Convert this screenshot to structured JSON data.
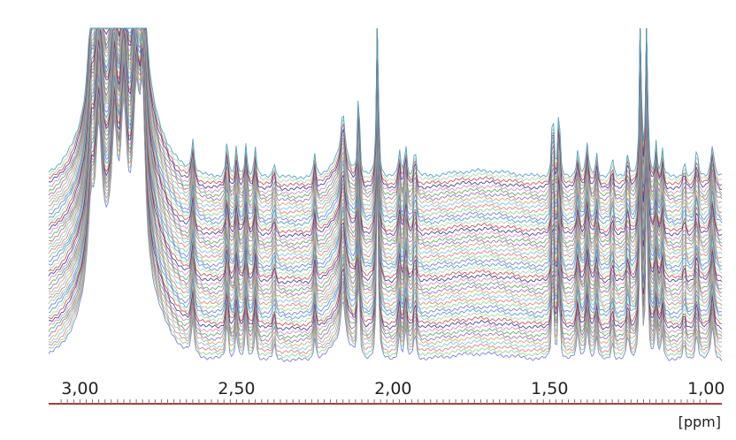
{
  "chart_data": {
    "type": "line",
    "title": "",
    "xlabel": "[ppm]",
    "ylabel": "",
    "x_reversed": true,
    "xlim": [
      3.1,
      0.95
    ],
    "ticks": [
      {
        "value": 3.0,
        "label": "3,00"
      },
      {
        "value": 2.5,
        "label": "2,50"
      },
      {
        "value": 2.0,
        "label": "2,00"
      },
      {
        "value": 1.5,
        "label": "1,50"
      },
      {
        "value": 1.0,
        "label": "1,00"
      }
    ],
    "minor_tick_step": 0.02,
    "stacked_spectra_count": 48,
    "series_colors": [
      "#6b6bd6",
      "#7fcf7f",
      "#e07070",
      "#70c0d8",
      "#c0a060",
      "#9060b0",
      "#50a050",
      "#d080c0",
      "#2a2a80",
      "#c04040",
      "#a0d0a0",
      "#4090c0"
    ],
    "axis_color": "#a04040",
    "peaks": [
      {
        "ppm": 2.965,
        "height": 0.22,
        "width": 0.012
      },
      {
        "ppm": 2.94,
        "height": 0.4,
        "width": 0.012
      },
      {
        "ppm": 2.89,
        "height": 0.3,
        "width": 0.01
      },
      {
        "ppm": 2.86,
        "height": 0.36,
        "width": 0.01
      },
      {
        "ppm": 2.82,
        "height": 0.42,
        "width": 0.012
      },
      {
        "ppm": 2.8,
        "height": 0.46,
        "width": 0.01
      },
      {
        "ppm": 2.64,
        "height": 0.1,
        "width": 0.005
      },
      {
        "ppm": 2.53,
        "height": 0.12,
        "width": 0.004
      },
      {
        "ppm": 2.5,
        "height": 0.09,
        "width": 0.004
      },
      {
        "ppm": 2.47,
        "height": 0.1,
        "width": 0.004
      },
      {
        "ppm": 2.44,
        "height": 0.09,
        "width": 0.004
      },
      {
        "ppm": 2.38,
        "height": 0.05,
        "width": 0.004
      },
      {
        "ppm": 2.25,
        "height": 0.07,
        "width": 0.004
      },
      {
        "ppm": 2.16,
        "height": 0.14,
        "width": 0.008
      },
      {
        "ppm": 2.11,
        "height": 0.32,
        "width": 0.003
      },
      {
        "ppm": 2.05,
        "height": 0.62,
        "width": 0.003
      },
      {
        "ppm": 1.98,
        "height": 0.08,
        "width": 0.004
      },
      {
        "ppm": 1.96,
        "height": 0.1,
        "width": 0.004
      },
      {
        "ppm": 1.93,
        "height": 0.09,
        "width": 0.004
      },
      {
        "ppm": 1.49,
        "height": 0.26,
        "width": 0.003
      },
      {
        "ppm": 1.47,
        "height": 0.26,
        "width": 0.003
      },
      {
        "ppm": 1.41,
        "height": 0.08,
        "width": 0.005
      },
      {
        "ppm": 1.38,
        "height": 0.1,
        "width": 0.005
      },
      {
        "ppm": 1.35,
        "height": 0.07,
        "width": 0.004
      },
      {
        "ppm": 1.3,
        "height": 0.06,
        "width": 0.004
      },
      {
        "ppm": 1.25,
        "height": 0.08,
        "width": 0.004
      },
      {
        "ppm": 1.21,
        "height": 0.6,
        "width": 0.003
      },
      {
        "ppm": 1.19,
        "height": 0.6,
        "width": 0.003
      },
      {
        "ppm": 1.16,
        "height": 0.1,
        "width": 0.004
      },
      {
        "ppm": 1.14,
        "height": 0.08,
        "width": 0.004
      },
      {
        "ppm": 1.07,
        "height": 0.05,
        "width": 0.004
      },
      {
        "ppm": 1.03,
        "height": 0.08,
        "width": 0.005
      },
      {
        "ppm": 0.98,
        "height": 0.1,
        "width": 0.006
      }
    ],
    "broad_humps": [
      {
        "ppm": 2.87,
        "height": 0.35,
        "width": 0.09
      },
      {
        "ppm": 2.17,
        "height": 0.05,
        "width": 0.03
      },
      {
        "ppm": 1.72,
        "height": 0.02,
        "width": 0.1
      }
    ]
  }
}
